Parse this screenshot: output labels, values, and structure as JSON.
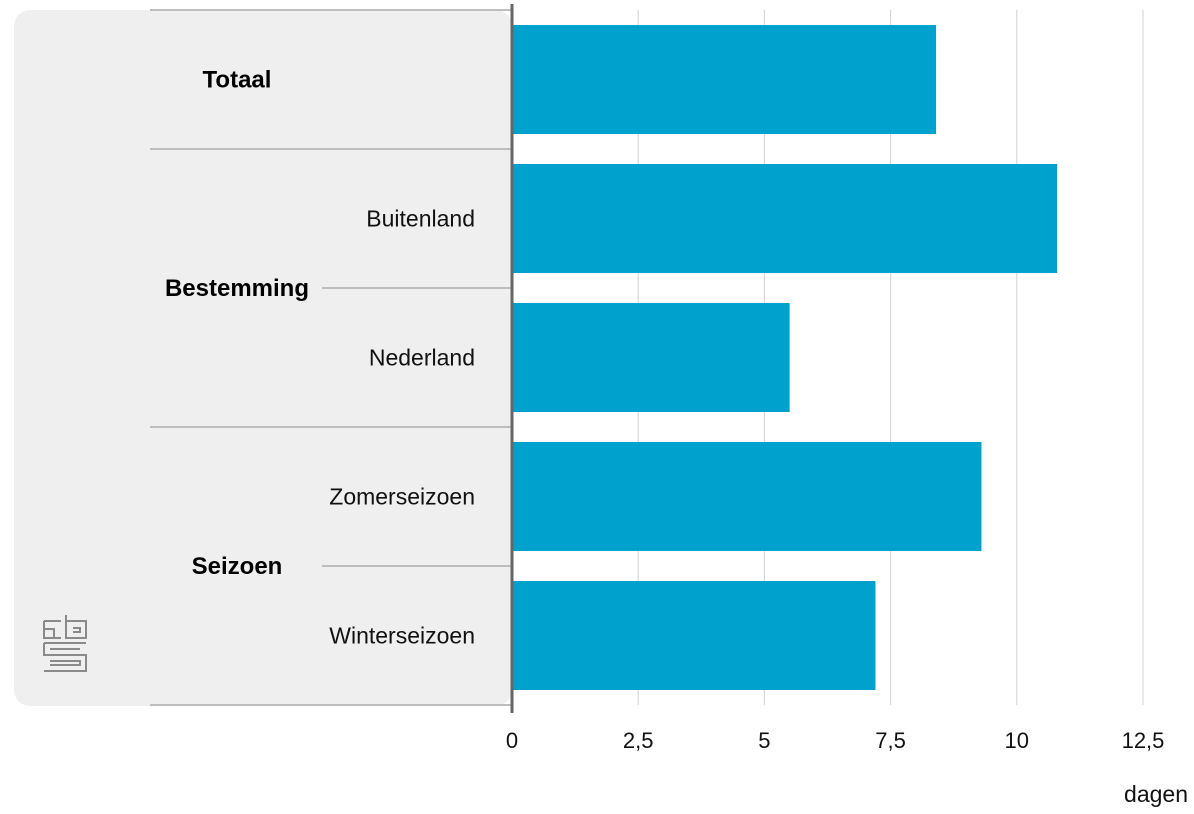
{
  "chart_data": {
    "type": "bar",
    "orientation": "horizontal",
    "categories": [
      "Totaal",
      "Buitenland",
      "Nederland",
      "Zomerseizoen",
      "Winterseizoen"
    ],
    "values": [
      8.4,
      10.8,
      5.5,
      9.3,
      7.2
    ],
    "groups": [
      {
        "label": "Totaal",
        "categories": [
          "Totaal"
        ]
      },
      {
        "label": "Bestemming",
        "categories": [
          "Buitenland",
          "Nederland"
        ]
      },
      {
        "label": "Seizoen",
        "categories": [
          "Zomerseizoen",
          "Winterseizoen"
        ]
      }
    ],
    "xlim": [
      0,
      12.5
    ],
    "xticks": [
      "0",
      "2,5",
      "5",
      "7,5",
      "10",
      "12,5"
    ],
    "xlabel": "dagen",
    "grid": "vertical",
    "bar_color": "#00a1cd"
  },
  "logo": {
    "text": "cbs",
    "icon": "cbs-logo-icon"
  }
}
